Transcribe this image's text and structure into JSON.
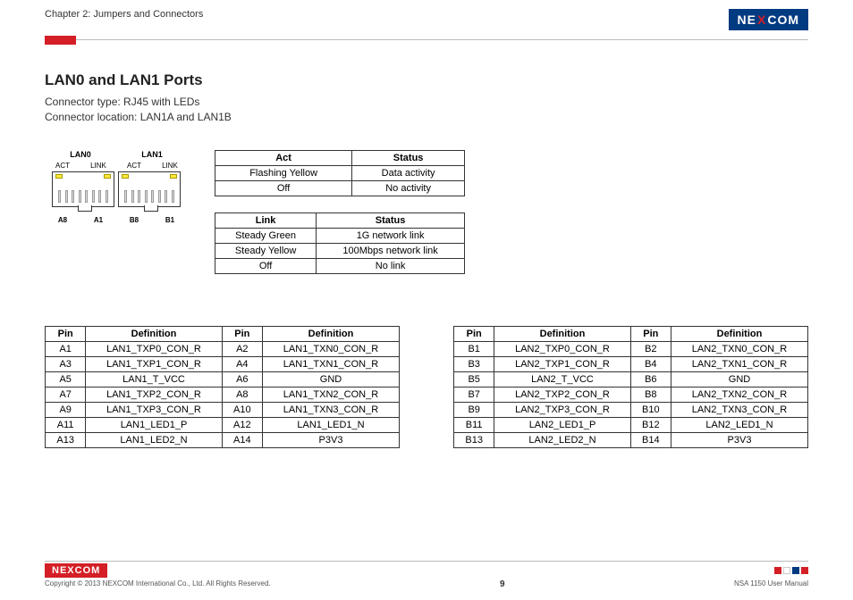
{
  "header": {
    "chapter": "Chapter 2: Jumpers and Connectors",
    "logo_parts": {
      "pre": "NE",
      "x": "X",
      "post": "COM"
    }
  },
  "section": {
    "title": "LAN0 and LAN1 Ports",
    "sub1": "Connector type: RJ45 with LEDs",
    "sub2": "Connector location: LAN1A and LAN1B"
  },
  "diagram": {
    "top_left": "LAN0",
    "top_right": "LAN1",
    "sub_a": "ACT",
    "sub_b": "LINK",
    "sub_c": "ACT",
    "sub_d": "LINK",
    "bot_a": "A8",
    "bot_b": "A1",
    "bot_c": "B8",
    "bot_d": "B1"
  },
  "act_table": {
    "h1": "Act",
    "h2": "Status",
    "rows": [
      [
        "Flashing Yellow",
        "Data activity"
      ],
      [
        "Off",
        "No activity"
      ]
    ]
  },
  "link_table": {
    "h1": "Link",
    "h2": "Status",
    "rows": [
      [
        "Steady Green",
        "1G network link"
      ],
      [
        "Steady Yellow",
        "100Mbps network link"
      ],
      [
        "Off",
        "No link"
      ]
    ]
  },
  "pin_table_a": {
    "headers": [
      "Pin",
      "Definition",
      "Pin",
      "Definition"
    ],
    "rows": [
      [
        "A1",
        "LAN1_TXP0_CON_R",
        "A2",
        "LAN1_TXN0_CON_R"
      ],
      [
        "A3",
        "LAN1_TXP1_CON_R",
        "A4",
        "LAN1_TXN1_CON_R"
      ],
      [
        "A5",
        "LAN1_T_VCC",
        "A6",
        "GND"
      ],
      [
        "A7",
        "LAN1_TXP2_CON_R",
        "A8",
        "LAN1_TXN2_CON_R"
      ],
      [
        "A9",
        "LAN1_TXP3_CON_R",
        "A10",
        "LAN1_TXN3_CON_R"
      ],
      [
        "A11",
        "LAN1_LED1_P",
        "A12",
        "LAN1_LED1_N"
      ],
      [
        "A13",
        "LAN1_LED2_N",
        "A14",
        "P3V3"
      ]
    ]
  },
  "pin_table_b": {
    "headers": [
      "Pin",
      "Definition",
      "Pin",
      "Definition"
    ],
    "rows": [
      [
        "B1",
        "LAN2_TXP0_CON_R",
        "B2",
        "LAN2_TXN0_CON_R"
      ],
      [
        "B3",
        "LAN2_TXP1_CON_R",
        "B4",
        "LAN2_TXN1_CON_R"
      ],
      [
        "B5",
        "LAN2_T_VCC",
        "B6",
        "GND"
      ],
      [
        "B7",
        "LAN2_TXP2_CON_R",
        "B8",
        "LAN2_TXN2_CON_R"
      ],
      [
        "B9",
        "LAN2_TXP3_CON_R",
        "B10",
        "LAN2_TXN3_CON_R"
      ],
      [
        "B11",
        "LAN2_LED1_P",
        "B12",
        "LAN2_LED1_N"
      ],
      [
        "B13",
        "LAN2_LED2_N",
        "B14",
        "P3V3"
      ]
    ]
  },
  "footer": {
    "copyright": "Copyright © 2013 NEXCOM International Co., Ltd. All Rights Reserved.",
    "page": "9",
    "manual": "NSA 1150 User Manual",
    "decor_colors": [
      "#d41f26",
      "#ffffff",
      "#003a80",
      "#d41f26"
    ]
  },
  "colors": {
    "brand_blue": "#003a80",
    "brand_red": "#d41f26",
    "led_yellow": "#ffeb3b"
  }
}
